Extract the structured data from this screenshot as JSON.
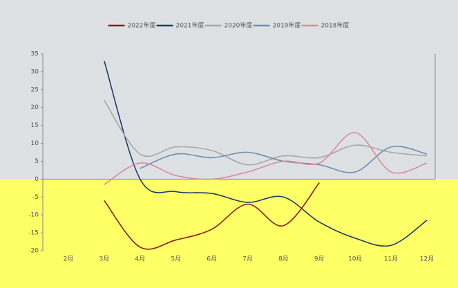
{
  "chart_data": {
    "type": "line",
    "categories": [
      "2月",
      "3月",
      "4月",
      "5月",
      "6月",
      "7月",
      "8月",
      "9月",
      "10月",
      "11月",
      "12月"
    ],
    "series": [
      {
        "name": "2022年度",
        "color": "#8b1a1a",
        "values": [
          null,
          -6,
          -19,
          -17,
          -14,
          -7,
          -13,
          -1,
          null,
          null,
          null
        ]
      },
      {
        "name": "2021年度",
        "color": "#1f3a6e",
        "values": [
          null,
          33,
          0,
          -3.5,
          -4,
          -6.5,
          -5,
          -12,
          -16.5,
          -18.5,
          -11.5
        ]
      },
      {
        "name": "2020年度",
        "color": "#a6a6a6",
        "values": [
          null,
          22,
          7,
          9,
          8,
          4,
          6.5,
          6,
          9.5,
          7.5,
          6.5
        ]
      },
      {
        "name": "2019年度",
        "color": "#6f8db3",
        "values": [
          null,
          null,
          3,
          7,
          6,
          7.5,
          5,
          4,
          2,
          9,
          7
        ]
      },
      {
        "name": "2018年度",
        "color": "#d98b95",
        "values": [
          null,
          -1.5,
          4.5,
          1,
          0,
          2,
          5,
          4.5,
          13,
          2,
          4.5
        ]
      }
    ],
    "ylim": [
      -20,
      35
    ],
    "yticks": [
      -20,
      -15,
      -10,
      -5,
      0,
      5,
      10,
      15,
      20,
      25,
      30,
      35
    ]
  }
}
